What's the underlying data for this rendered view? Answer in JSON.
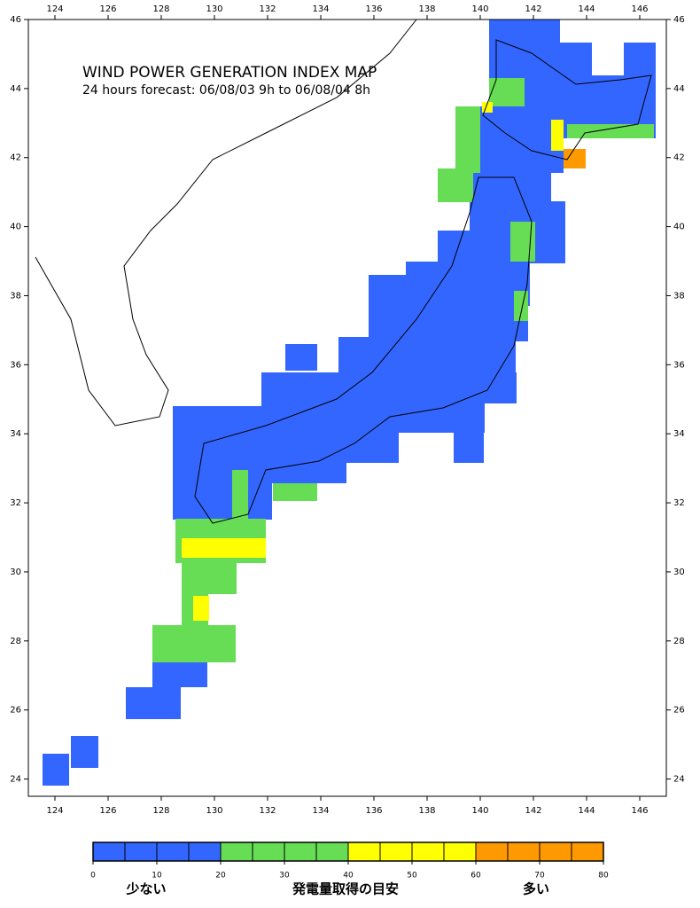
{
  "map": {
    "title": "WIND POWER GENERATION INDEX MAP",
    "subtitle": "24 hours forecast: 06/08/03 9h to 06/08/04 8h",
    "lon_range": [
      123,
      147
    ],
    "lat_range": [
      23.5,
      46
    ],
    "lon_ticks": [
      124,
      126,
      128,
      130,
      132,
      134,
      136,
      138,
      140,
      142,
      144,
      146
    ],
    "lat_ticks": [
      24,
      26,
      28,
      30,
      32,
      34,
      36,
      38,
      40,
      42,
      44,
      46
    ]
  },
  "colorbar": {
    "range": [
      0,
      80
    ],
    "ticks": [
      0,
      10,
      20,
      30,
      40,
      50,
      60,
      70,
      80
    ],
    "bands": [
      {
        "from": 0,
        "to": 20,
        "color": "#3366ff"
      },
      {
        "from": 20,
        "to": 40,
        "color": "#66dd55"
      },
      {
        "from": 40,
        "to": 60,
        "color": "#ffff00"
      },
      {
        "from": 60,
        "to": 80,
        "color": "#ff9900"
      }
    ],
    "label_low": "少ない",
    "label_mid": "発電量取得の目安",
    "label_high": "多い"
  }
}
